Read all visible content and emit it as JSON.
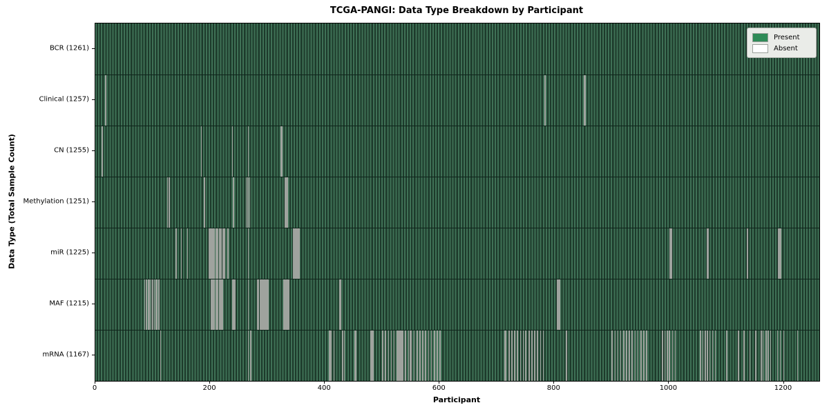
{
  "title": "TCGA-PANGI: Data Type Breakdown by Participant",
  "chart_data": {
    "type": "heatmap",
    "title": "TCGA-PANGI: Data Type Breakdown by Participant",
    "xlabel": "Participant",
    "ylabel": "Data Type (Total Sample Count)",
    "x_ticks": [
      0,
      200,
      400,
      600,
      800,
      1000,
      1200
    ],
    "x_range": [
      0,
      1262
    ],
    "n_participants": 1261,
    "grid": false,
    "colors": {
      "present": "#2e8b57",
      "absent": "#ffffff",
      "stripe_light": "#3f7156",
      "stripe_dark": "#1d3a2b",
      "absent_render": "#9fa39e",
      "row_divider": "#0e241a"
    },
    "legend": {
      "position": "upper right",
      "items": [
        {
          "label": "Present",
          "color": "#2e8b57"
        },
        {
          "label": "Absent",
          "color": "#ffffff"
        }
      ]
    },
    "rows": [
      {
        "label": "BCR (1261)",
        "data_type": "BCR",
        "present_count": 1261,
        "absent_participants": []
      },
      {
        "label": "Clinical (1257)",
        "data_type": "Clinical",
        "present_count": 1257,
        "absent_participants": [
          17,
          783,
          851,
          853
        ]
      },
      {
        "label": "CN (1255)",
        "data_type": "CN",
        "present_count": 1255,
        "absent_participants": [
          11,
          184,
          238,
          266,
          323,
          325
        ]
      },
      {
        "label": "Methylation (1251)",
        "data_type": "Methylation",
        "present_count": 1251,
        "absent_participants": [
          125,
          128,
          189,
          240,
          262,
          265,
          268,
          330,
          332,
          334
        ]
      },
      {
        "label": "miR (1225)",
        "data_type": "miR",
        "present_count": 1225,
        "absent_participants": [
          140,
          149,
          160,
          197,
          199,
          201,
          203,
          205,
          207,
          209,
          211,
          213,
          215,
          217,
          219,
          221,
          223,
          225,
          230,
          266,
          345,
          346,
          348,
          350,
          352,
          354,
          1001,
          1003,
          1066,
          1068,
          1136,
          1190,
          1191,
          1192,
          1193,
          1194
        ]
      },
      {
        "label": "MAF (1215)",
        "data_type": "MAF",
        "present_count": 1215,
        "absent_participants": [
          85,
          88,
          91,
          93,
          96,
          99,
          102,
          105,
          107,
          110,
          201,
          203,
          205,
          207,
          209,
          211,
          213,
          215,
          217,
          219,
          220,
          221,
          238,
          240,
          242,
          266,
          282,
          284,
          286,
          288,
          290,
          292,
          294,
          296,
          298,
          300,
          328,
          330,
          332,
          334,
          336,
          425,
          427,
          805,
          807,
          809
        ]
      },
      {
        "label": "mRNA (1167)",
        "data_type": "mRNA",
        "present_count": 1167,
        "absent_participants": [
          113,
          266,
          270,
          407,
          410,
          415,
          430,
          433,
          451,
          453,
          479,
          481,
          483,
          500,
          505,
          510,
          515,
          520,
          525,
          527,
          529,
          531,
          533,
          535,
          540,
          545,
          548,
          550,
          555,
          560,
          565,
          570,
          575,
          580,
          585,
          590,
          595,
          600,
          713,
          715,
          720,
          725,
          730,
          735,
          740,
          745,
          749,
          755,
          760,
          765,
          770,
          775,
          780,
          820,
          900,
          905,
          910,
          915,
          920,
          925,
          930,
          935,
          940,
          945,
          950,
          955,
          960,
          988,
          992,
          996,
          1000,
          1005,
          1010,
          1054,
          1058,
          1062,
          1066,
          1070,
          1075,
          1080,
          1100,
          1120,
          1130,
          1140,
          1150,
          1160,
          1163,
          1168,
          1172,
          1176,
          1188,
          1193,
          1199,
          1223
        ]
      }
    ]
  }
}
